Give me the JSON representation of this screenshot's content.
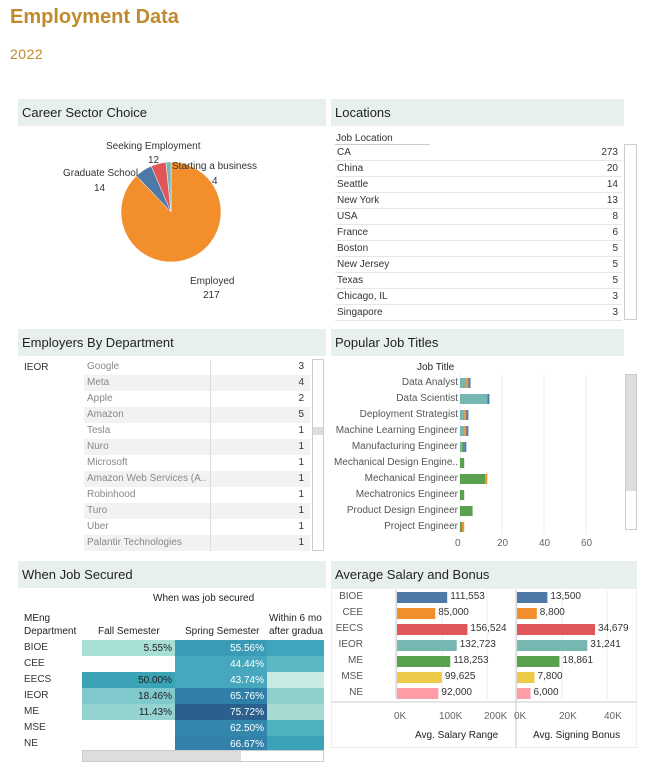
{
  "header": {
    "title": "Employment Data",
    "subtitle": "2022"
  },
  "career": {
    "title": "Career Sector Choice",
    "slices": [
      {
        "label": "Employed",
        "value": 217,
        "color": "#f28e2b"
      },
      {
        "label": "Graduate School",
        "value": 14,
        "color": "#4e79a7"
      },
      {
        "label": "Seeking Employment",
        "value": 12,
        "color": "#e15759"
      },
      {
        "label": "Starting a business",
        "value": 4,
        "color": "#76b7b2"
      }
    ],
    "labels": {
      "seeking": "Seeking Employment",
      "seeking_v": "12",
      "startup": "Starting a business",
      "startup_v": "4",
      "grad": "Graduate School",
      "grad_v": "14",
      "employed": "Employed",
      "employed_v": "217"
    }
  },
  "locations": {
    "title": "Locations",
    "col_header": "Job Location",
    "rows": [
      {
        "name": "CA",
        "value": "273"
      },
      {
        "name": "China",
        "value": "20"
      },
      {
        "name": "Seattle",
        "value": "14"
      },
      {
        "name": "New York",
        "value": "13"
      },
      {
        "name": "USA",
        "value": "8"
      },
      {
        "name": "France",
        "value": "6"
      },
      {
        "name": "Boston",
        "value": "5"
      },
      {
        "name": "New Jersey",
        "value": "5"
      },
      {
        "name": "Texas",
        "value": "5"
      },
      {
        "name": "Chicago, IL",
        "value": "3"
      },
      {
        "name": "Singapore",
        "value": "3"
      }
    ]
  },
  "employers": {
    "title": "Employers By Department",
    "department": "IEOR",
    "rows": [
      {
        "name": "Google",
        "value": "3"
      },
      {
        "name": "Meta",
        "value": "4"
      },
      {
        "name": "Apple",
        "value": "2"
      },
      {
        "name": "Amazon",
        "value": "5"
      },
      {
        "name": "Tesla",
        "value": "1"
      },
      {
        "name": "Nuro",
        "value": "1"
      },
      {
        "name": "Microsoft",
        "value": "1"
      },
      {
        "name": "Amazon Web Services (A..",
        "value": "1"
      },
      {
        "name": "Robinhood",
        "value": "1"
      },
      {
        "name": "Turo",
        "value": "1"
      },
      {
        "name": "Uber",
        "value": "1"
      },
      {
        "name": "Palantir Technologies",
        "value": "1"
      }
    ]
  },
  "jobs": {
    "title": "Popular Job Titles",
    "col_header": "Job Title",
    "ticks": [
      "0",
      "20",
      "40",
      "60"
    ],
    "chart_data": {
      "type": "bar",
      "categories": [
        "Data Analyst",
        "Data Scientist",
        "Deployment Strategist",
        "Machine Learning Engineer",
        "Manufacturing Engineer",
        "Mechanical Design Engine..",
        "Mechanical Engineer",
        "Mechatronics Engineer",
        "Product Design Engineer",
        "Project Engineer"
      ],
      "series": [
        {
          "color": "#76b7b2",
          "values": [
            3,
            13,
            2,
            2,
            1,
            0,
            0,
            0,
            0,
            0
          ]
        },
        {
          "color": "#59a14f",
          "values": [
            0,
            0,
            0,
            0,
            1,
            2,
            12,
            2,
            6,
            1
          ]
        },
        {
          "color": "#f28e2b",
          "values": [
            1,
            0,
            1,
            1,
            0,
            0,
            1,
            0,
            0,
            1
          ]
        },
        {
          "color": "#4e79a7",
          "values": [
            1,
            1,
            1,
            1,
            1,
            0,
            0,
            0,
            0,
            0
          ]
        }
      ],
      "xlim": [
        0,
        70
      ]
    }
  },
  "secured": {
    "title": "When Job Secured",
    "top_header": "When was job secured",
    "row_header_1": "MEng",
    "row_header_2": "Department",
    "cols": [
      "Fall Semester",
      "Spring Semester",
      "Within 6 mo"
    ],
    "col3_line2": "after gradua",
    "rows": [
      {
        "dept": "BIOE",
        "fall": "5.55%",
        "spring": "55.56%"
      },
      {
        "dept": "CEE",
        "fall": "",
        "spring": "44.44%"
      },
      {
        "dept": "EECS",
        "fall": "50.00%",
        "spring": "43.74%"
      },
      {
        "dept": "IEOR",
        "fall": "18.46%",
        "spring": "65.76%"
      },
      {
        "dept": "ME",
        "fall": "11.43%",
        "spring": "75.72%"
      },
      {
        "dept": "MSE",
        "fall": "",
        "spring": "62.50%"
      },
      {
        "dept": "NE",
        "fall": "",
        "spring": "66.67%"
      }
    ]
  },
  "salary": {
    "title": "Average Salary and Bonus",
    "chart_data": {
      "type": "bar",
      "categories": [
        "BIOE",
        "CEE",
        "EECS",
        "IEOR",
        "ME",
        "MSE",
        "NE"
      ],
      "colors": [
        "#4e79a7",
        "#f28e2b",
        "#e15759",
        "#76b7b2",
        "#59a14f",
        "#edc948",
        "#ff9da7"
      ],
      "salary": [
        111553,
        85000,
        156524,
        132723,
        118253,
        99625,
        92000
      ],
      "salary_labels": [
        "111,553",
        "85,000",
        "156,524",
        "132,723",
        "118,253",
        "99,625",
        "92,000"
      ],
      "bonus": [
        13500,
        8800,
        34679,
        31241,
        18861,
        7800,
        6000
      ],
      "bonus_labels": [
        "13,500",
        "8,800",
        "34,679",
        "31,241",
        "18,861",
        "7,800",
        "6,000"
      ],
      "salary_ticks": [
        "0K",
        "100K",
        "200K"
      ],
      "bonus_ticks": [
        "0K",
        "20K",
        "40K"
      ],
      "salary_xlabel": "Avg. Salary Range",
      "bonus_xlabel": "Avg. Signing Bonus"
    }
  }
}
